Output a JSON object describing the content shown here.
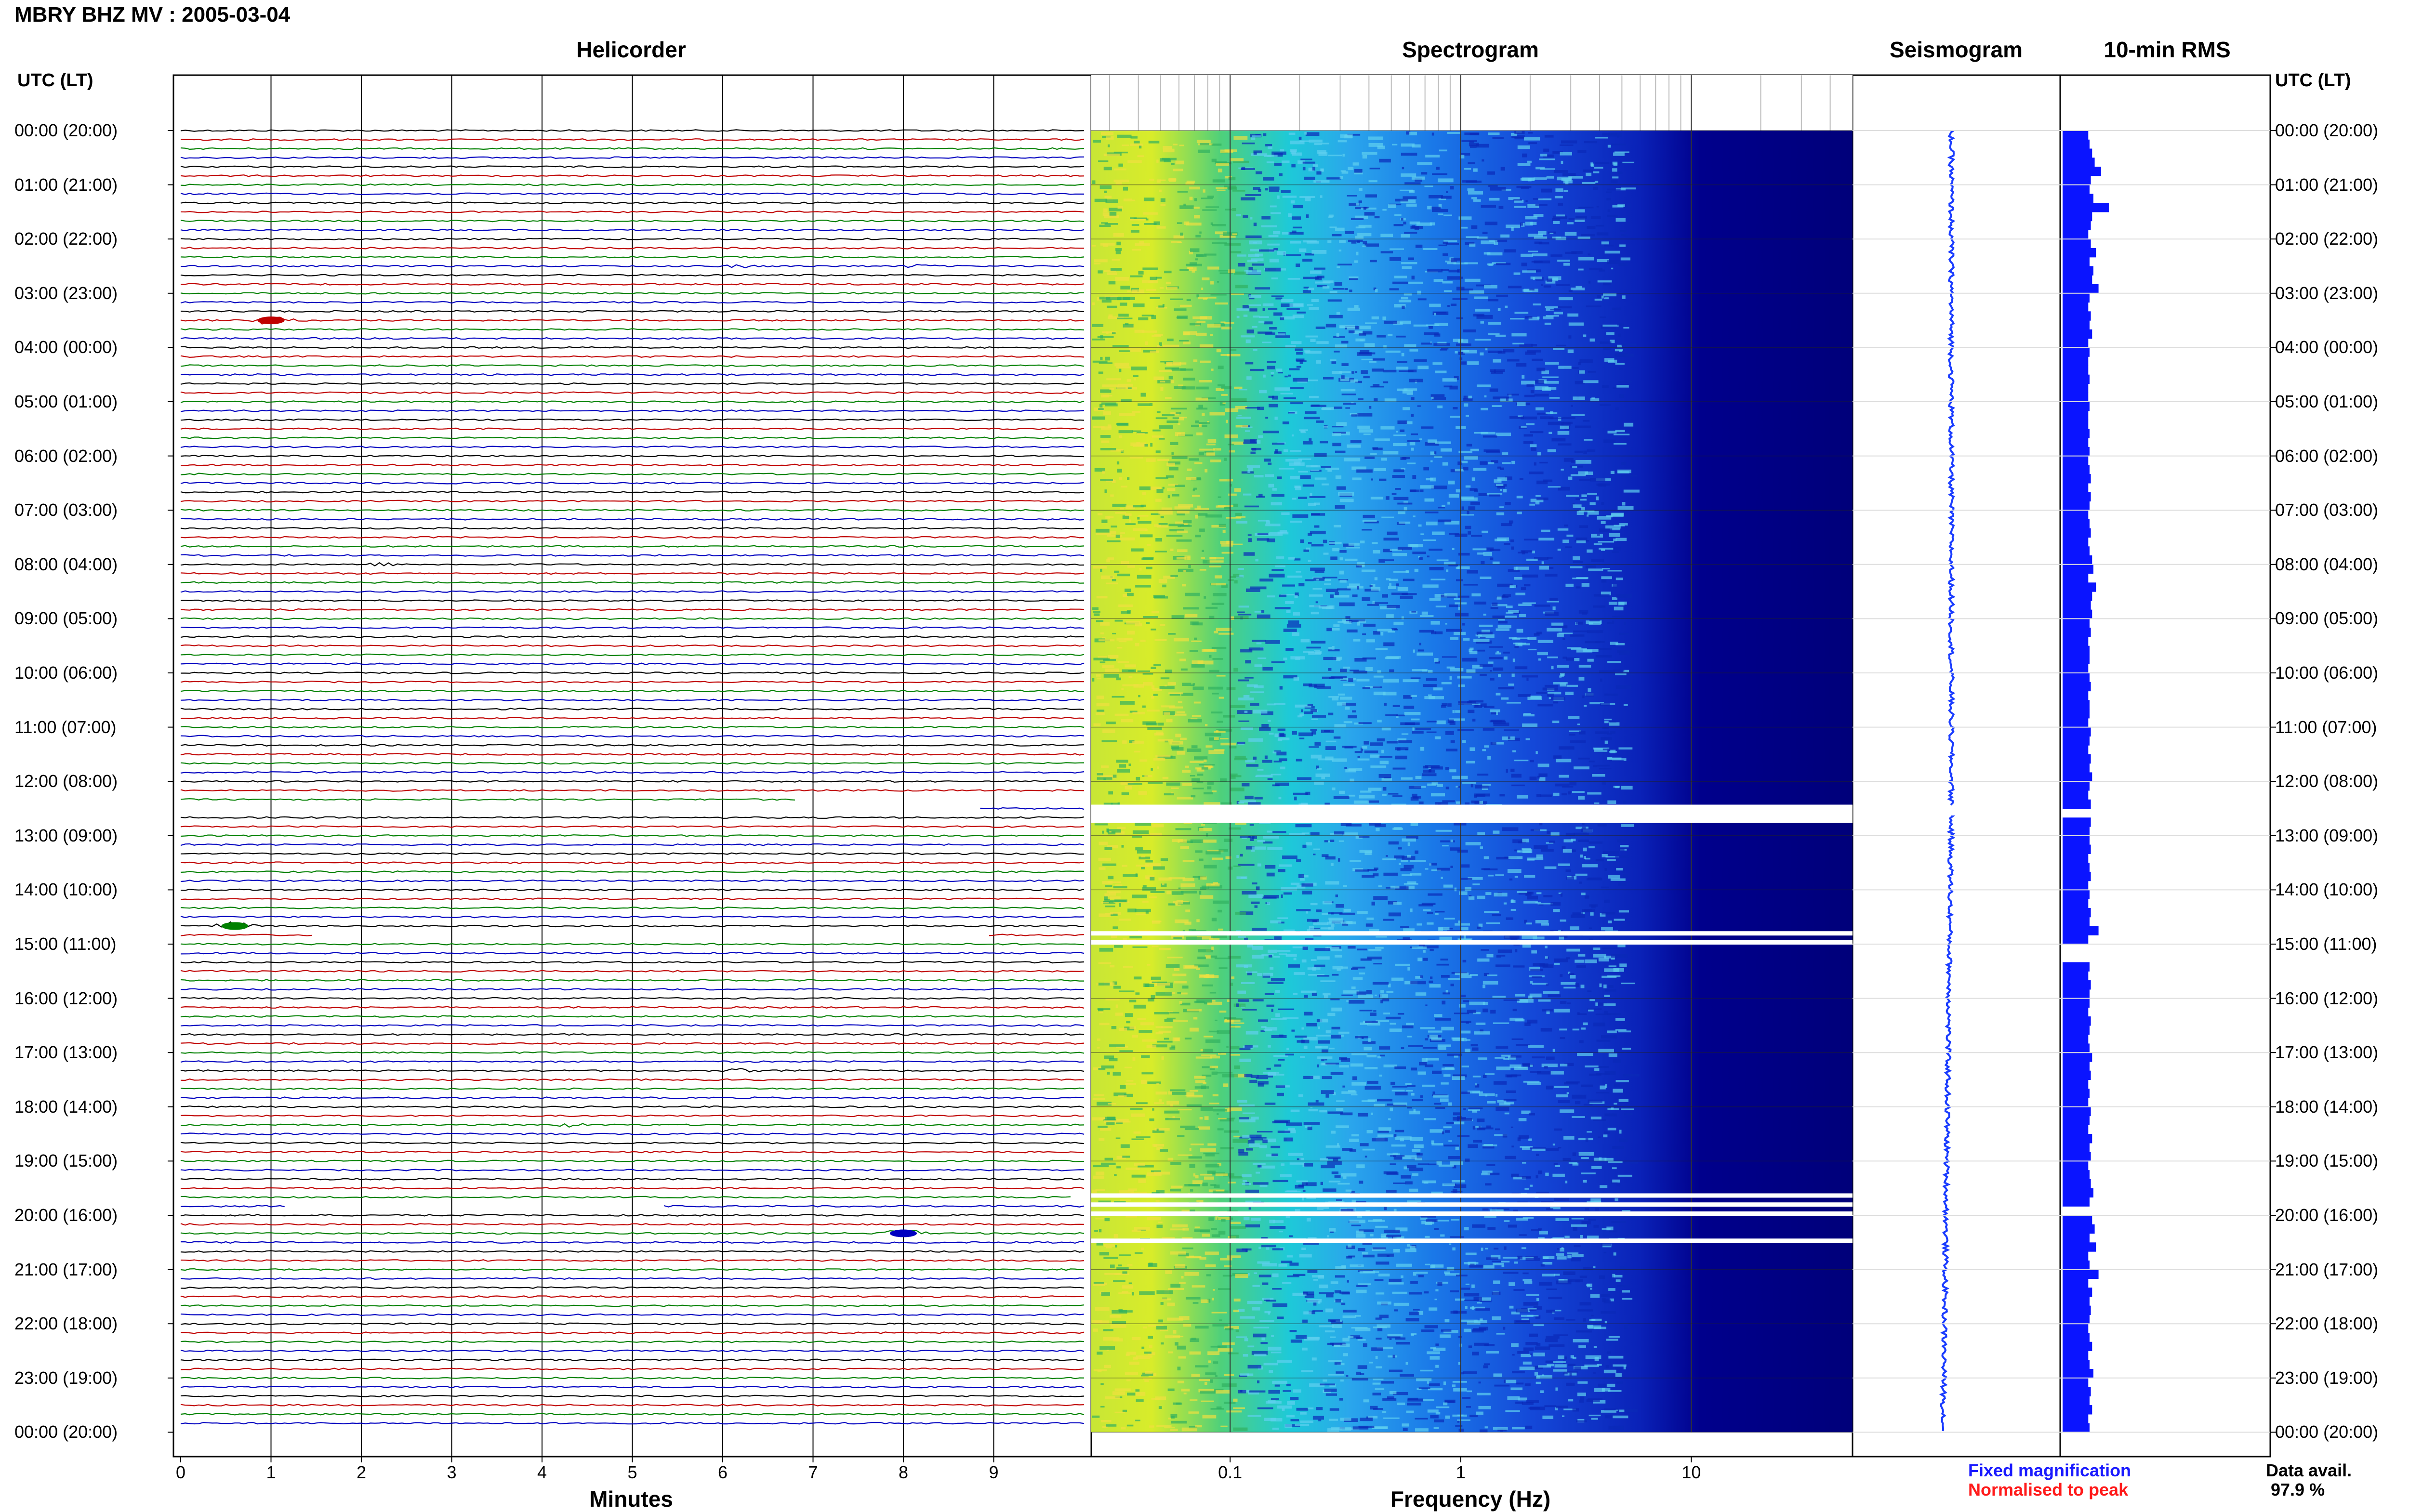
{
  "title": "MBRY BHZ MV : 2005-03-04",
  "panels": {
    "helicorder": "Helicorder",
    "spectrogram": "Spectrogram",
    "seismogram": "Seismogram",
    "rms": "10-min RMS"
  },
  "time_axis_header_left": "UTC (LT)",
  "time_axis_header_right": "UTC (LT)",
  "time_labels": [
    "00:00 (20:00)",
    "01:00 (21:00)",
    "02:00 (22:00)",
    "03:00 (23:00)",
    "04:00 (00:00)",
    "05:00 (01:00)",
    "06:00 (02:00)",
    "07:00 (03:00)",
    "08:00 (04:00)",
    "09:00 (05:00)",
    "10:00 (06:00)",
    "11:00 (07:00)",
    "12:00 (08:00)",
    "13:00 (09:00)",
    "14:00 (10:00)",
    "15:00 (11:00)",
    "16:00 (12:00)",
    "17:00 (13:00)",
    "18:00 (14:00)",
    "19:00 (15:00)",
    "20:00 (16:00)",
    "21:00 (17:00)",
    "22:00 (18:00)",
    "23:00 (19:00)",
    "00:00 (20:00)"
  ],
  "helicorder_xticks": [
    "0",
    "1",
    "2",
    "3",
    "4",
    "5",
    "6",
    "7",
    "8",
    "9"
  ],
  "helicorder_xlabel": "Minutes",
  "spectrogram_xticks": [
    "0.1",
    "1",
    "10"
  ],
  "spectrogram_xlabel": "Frequency (Hz)",
  "legend": {
    "fixed": "Fixed magnification",
    "normalised": "Normalised to peak",
    "fixed_color": "#1a1aff",
    "normalised_color": "#ff1a1a"
  },
  "data_availability": {
    "label": "Data avail.",
    "value": "97.9 %"
  },
  "colors": {
    "trace_cycle": [
      "#000000",
      "#c00000",
      "#008000",
      "#0000c0"
    ],
    "seismogram": "#1a3cff",
    "rms_bar": "#0a14ff",
    "spectrogram_low": "#e8f020",
    "spectrogram_high": "#00007a"
  },
  "chart_data": [
    {
      "type": "line",
      "panel": "Helicorder",
      "xlabel": "Minutes",
      "xlim": [
        0,
        10
      ],
      "traces_per_hour": 6,
      "trace_color_cycle": [
        "black",
        "red",
        "green",
        "blue"
      ],
      "events": [
        {
          "time": "03:30",
          "minute": 1.0,
          "color": "red",
          "amplitude": "large"
        },
        {
          "time": "02:30",
          "minute": 6.2,
          "color": "green",
          "amplitude": "small"
        },
        {
          "time": "02:30",
          "minute": 8.2,
          "color": "green",
          "amplitude": "small"
        },
        {
          "time": "08:00",
          "minute": 2.2,
          "color": "green",
          "amplitude": "small"
        },
        {
          "time": "14:40",
          "minute": 0.6,
          "color": "green",
          "amplitude": "large"
        },
        {
          "time": "20:20",
          "minute": 8.0,
          "color": "blue",
          "amplitude": "large"
        },
        {
          "time": "17:20",
          "minute": 6.2,
          "color": "black",
          "amplitude": "small"
        },
        {
          "time": "18:20",
          "minute": 4.3,
          "color": "blue",
          "amplitude": "small"
        }
      ],
      "gaps": [
        {
          "time": "12:20",
          "from_minute": 6.8,
          "to_minute": 10
        },
        {
          "time": "12:30",
          "from_minute": 0,
          "to_minute": 8.8
        },
        {
          "time": "14:50",
          "from_minute": 1.5,
          "to_minute": 8.9
        },
        {
          "time": "19:50",
          "from_minute": 1.2,
          "to_minute": 5.3
        },
        {
          "time": "19:40",
          "from_minute": 9.9,
          "to_minute": 10
        }
      ]
    },
    {
      "type": "heatmap",
      "panel": "Spectrogram",
      "xlabel": "Frequency (Hz)",
      "xscale": "log",
      "xlim": [
        0.025,
        50
      ],
      "colormap": "yellow (high power, low frequency) to dark blue (low power, high frequency)",
      "gaps": [
        "12:30",
        "14:50",
        "15:00",
        "19:40",
        "19:50",
        "20:00",
        "20:30"
      ]
    },
    {
      "type": "line",
      "panel": "Seismogram",
      "description_level": "narrow continuous trace with a gap at 12:30"
    },
    {
      "type": "bar",
      "panel": "10-min RMS",
      "orientation": "horizontal",
      "interval_minutes": 10,
      "values": [
        2.0,
        2.1,
        2.3,
        2.5,
        3.0,
        2.2,
        2.1,
        2.4,
        3.6,
        2.3,
        2.2,
        2.0,
        2.2,
        2.6,
        2.1,
        2.4,
        2.3,
        2.8,
        2.1,
        2.0,
        2.2,
        2.1,
        2.3,
        2.0,
        2.1,
        2.0,
        2.0,
        2.1,
        2.0,
        2.0,
        2.1,
        2.0,
        2.0,
        2.1,
        2.0,
        2.1,
        2.0,
        2.1,
        2.2,
        2.0,
        2.2,
        2.1,
        2.0,
        2.1,
        2.2,
        2.0,
        2.1,
        2.3,
        2.4,
        2.0,
        2.6,
        2.3,
        2.2,
        2.3,
        2.1,
        2.2,
        2.0,
        2.1,
        2.1,
        2.0,
        2.1,
        2.2,
        2.0,
        2.1,
        2.1,
        2.0,
        2.2,
        2.1,
        2.0,
        2.2,
        2.1,
        2.3,
        2.1,
        2.0,
        2.2,
        0.0,
        2.2,
        2.1,
        2.1,
        2.2,
        2.0,
        2.1,
        2.2,
        2.0,
        2.1,
        2.0,
        2.2,
        2.1,
        2.8,
        2.0,
        0.0,
        0.0,
        2.1,
        2.0,
        2.2,
        2.1,
        2.1,
        2.0,
        2.2,
        2.1,
        2.0,
        2.1,
        2.3,
        2.1,
        2.2,
        2.0,
        2.1,
        2.0,
        2.2,
        2.1,
        2.0,
        2.3,
        2.1,
        2.2,
        2.0,
        2.1,
        2.2,
        2.4,
        2.1,
        0.0,
        2.3,
        2.5,
        2.1,
        2.6,
        2.0,
        2.1,
        2.8,
        2.0,
        2.3,
        2.1,
        2.2,
        2.1,
        2.0,
        2.1,
        2.3,
        2.0,
        2.1,
        2.4,
        2.0,
        2.2,
        2.1,
        2.3,
        2.0,
        2.1
      ]
    }
  ]
}
